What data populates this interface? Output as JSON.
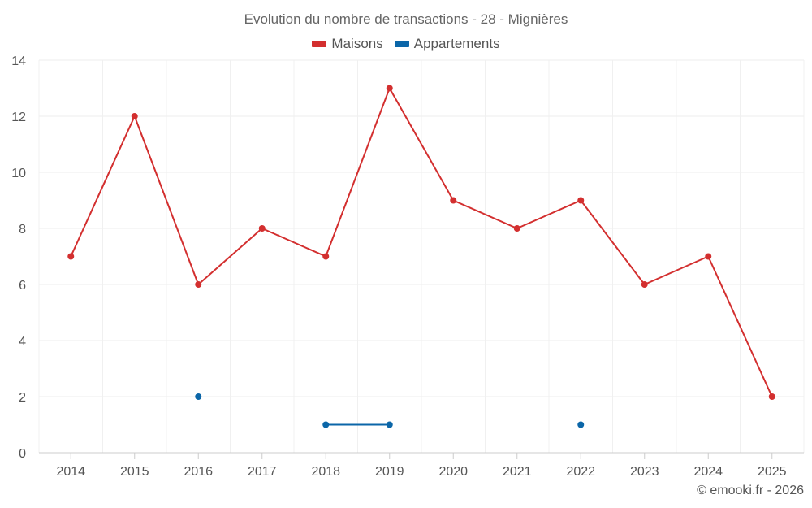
{
  "chart_data": {
    "type": "line",
    "title": "Evolution du nombre de transactions - 28 - Mignières",
    "categories": [
      "2014",
      "2015",
      "2016",
      "2017",
      "2018",
      "2019",
      "2020",
      "2021",
      "2022",
      "2023",
      "2024",
      "2025"
    ],
    "ylim": [
      0,
      14
    ],
    "yticks": [
      "0",
      "2",
      "4",
      "6",
      "8",
      "10",
      "12",
      "14"
    ],
    "xlabel": "",
    "ylabel": "",
    "grid": true,
    "legend_position": "top-center",
    "series": [
      {
        "name": "Maisons",
        "color": "#d32f2f",
        "values": [
          7,
          12,
          6,
          8,
          7,
          13,
          9,
          8,
          9,
          6,
          7,
          2
        ]
      },
      {
        "name": "Appartements",
        "color": "#0b66a8",
        "values": [
          null,
          null,
          2,
          null,
          1,
          1,
          null,
          null,
          1,
          null,
          null,
          null
        ]
      }
    ]
  },
  "footer": {
    "credit": "© emooki.fr - 2026"
  }
}
